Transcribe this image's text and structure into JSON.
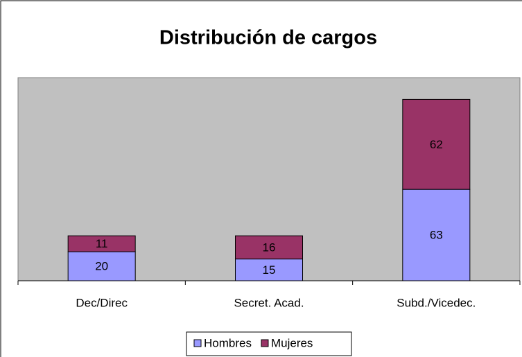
{
  "chart_data": {
    "type": "stacked_bar",
    "title": "Distribución de cargos",
    "categories": [
      "Dec/Direc",
      "Secret. Acad.",
      "Subd./Vicedec."
    ],
    "series": [
      {
        "name": "Hombres",
        "color": "#9999ff",
        "values": [
          20,
          15,
          63
        ]
      },
      {
        "name": "Mujeres",
        "color": "#993366",
        "values": [
          11,
          16,
          62
        ]
      }
    ],
    "ylim": [
      0,
      140
    ],
    "legend": "bottom",
    "plot_background": "#c0c0c0"
  }
}
